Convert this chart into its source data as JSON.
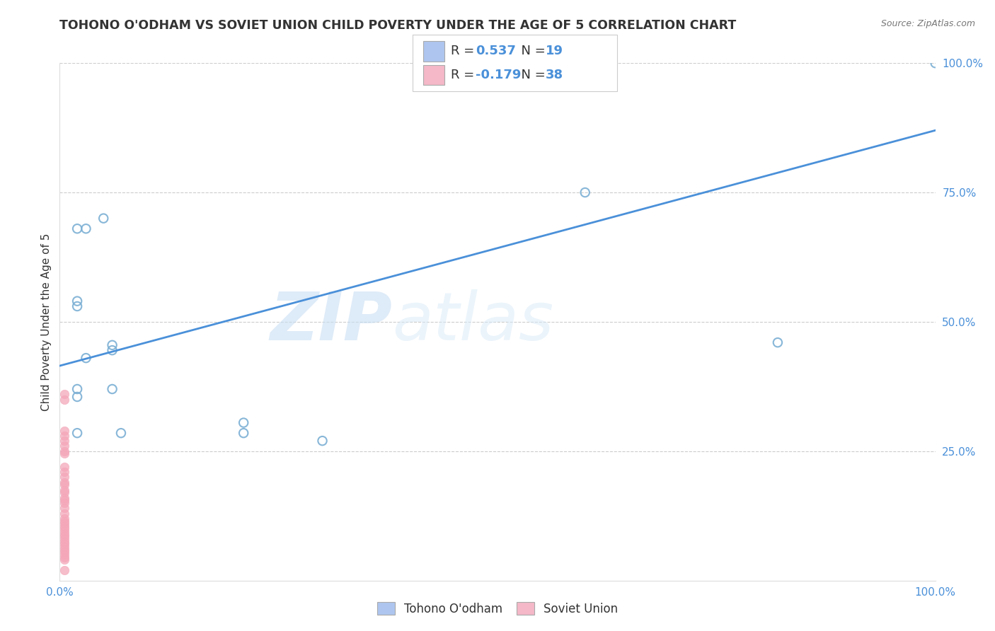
{
  "title": "TOHONO O'ODHAM VS SOVIET UNION CHILD POVERTY UNDER THE AGE OF 5 CORRELATION CHART",
  "source": "Source: ZipAtlas.com",
  "ylabel": "Child Poverty Under the Age of 5",
  "watermark_zip": "ZIP",
  "watermark_atlas": "atlas",
  "bottom_legend": [
    "Tohono O'odham",
    "Soviet Union"
  ],
  "tohono_points": [
    [
      0.02,
      0.68
    ],
    [
      0.03,
      0.68
    ],
    [
      0.05,
      0.7
    ],
    [
      0.02,
      0.54
    ],
    [
      0.02,
      0.53
    ],
    [
      0.06,
      0.455
    ],
    [
      0.06,
      0.445
    ],
    [
      0.03,
      0.43
    ],
    [
      0.02,
      0.37
    ],
    [
      0.02,
      0.355
    ],
    [
      0.06,
      0.37
    ],
    [
      0.02,
      0.285
    ],
    [
      0.07,
      0.285
    ],
    [
      0.21,
      0.285
    ],
    [
      0.21,
      0.305
    ],
    [
      0.6,
      0.75
    ],
    [
      0.82,
      0.46
    ],
    [
      0.3,
      0.27
    ],
    [
      1.0,
      1.0
    ]
  ],
  "soviet_points": [
    [
      0.005,
      0.36
    ],
    [
      0.005,
      0.35
    ],
    [
      0.005,
      0.29
    ],
    [
      0.005,
      0.28
    ],
    [
      0.005,
      0.27
    ],
    [
      0.005,
      0.26
    ],
    [
      0.005,
      0.25
    ],
    [
      0.005,
      0.245
    ],
    [
      0.005,
      0.22
    ],
    [
      0.005,
      0.21
    ],
    [
      0.005,
      0.2
    ],
    [
      0.005,
      0.19
    ],
    [
      0.005,
      0.185
    ],
    [
      0.005,
      0.175
    ],
    [
      0.005,
      0.17
    ],
    [
      0.005,
      0.16
    ],
    [
      0.005,
      0.155
    ],
    [
      0.005,
      0.15
    ],
    [
      0.005,
      0.14
    ],
    [
      0.005,
      0.13
    ],
    [
      0.005,
      0.12
    ],
    [
      0.005,
      0.115
    ],
    [
      0.005,
      0.11
    ],
    [
      0.005,
      0.105
    ],
    [
      0.005,
      0.1
    ],
    [
      0.005,
      0.095
    ],
    [
      0.005,
      0.09
    ],
    [
      0.005,
      0.085
    ],
    [
      0.005,
      0.08
    ],
    [
      0.005,
      0.075
    ],
    [
      0.005,
      0.07
    ],
    [
      0.005,
      0.065
    ],
    [
      0.005,
      0.06
    ],
    [
      0.005,
      0.055
    ],
    [
      0.005,
      0.05
    ],
    [
      0.005,
      0.045
    ],
    [
      0.005,
      0.04
    ],
    [
      0.005,
      0.02
    ]
  ],
  "tohono_color": "#7bafd4",
  "soviet_color": "#f4a7b9",
  "trendline_color": "#4a90d9",
  "trendline_x": [
    0.0,
    1.0
  ],
  "trendline_y": [
    0.415,
    0.87
  ],
  "xlim": [
    0.0,
    1.0
  ],
  "ylim": [
    0.0,
    1.0
  ],
  "background_color": "#ffffff",
  "grid_color": "#cccccc",
  "marker_size": 80,
  "title_fontsize": 12.5,
  "axis_fontsize": 11,
  "tick_fontsize": 11,
  "legend_fontsize": 13,
  "r1": "0.537",
  "n1": "19",
  "r2": "-0.179",
  "n2": "38",
  "legend_patch1_color": "#aec6ef",
  "legend_patch2_color": "#f4b8c8",
  "text_dark": "#333333",
  "text_blue": "#4a90d9"
}
